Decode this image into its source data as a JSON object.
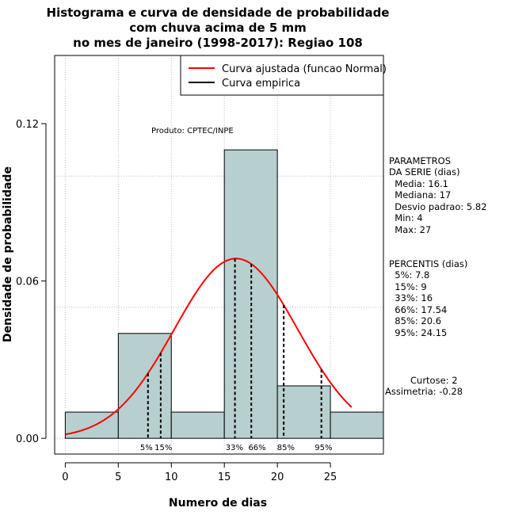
{
  "chart_data": {
    "type": "histogram",
    "title_lines": [
      "Histograma e curva de densidade de probabilidade",
      "com chuva acima de 5 mm",
      "no mes de janeiro (1998-2017): Regiao 108"
    ],
    "xlabel": "Numero de dias",
    "ylabel": "Densidade de probabilidade",
    "xlim": [
      -1,
      30
    ],
    "ylim": [
      -0.006,
      0.146
    ],
    "x_ticks": [
      0,
      5,
      10,
      15,
      20,
      25
    ],
    "y_ticks": [
      0.0,
      0.06,
      0.12
    ],
    "y_tick_labels": [
      "0.00",
      "0.06",
      "0.12"
    ],
    "grid": true,
    "bins": [
      {
        "start": 0,
        "end": 5,
        "density": 0.01
      },
      {
        "start": 5,
        "end": 10,
        "density": 0.04
      },
      {
        "start": 10,
        "end": 15,
        "density": 0.01
      },
      {
        "start": 15,
        "end": 20,
        "density": 0.11
      },
      {
        "start": 20,
        "end": 25,
        "density": 0.02
      },
      {
        "start": 25,
        "end": 30,
        "density": 0.01
      }
    ],
    "normal_curve": {
      "mean": 16.1,
      "sd": 5.82,
      "x_range": [
        0,
        27
      ],
      "color": "#ff0000"
    },
    "bar_color": "#b8cfcf",
    "product_label": "Produto: CPTEC/INPE",
    "legend": {
      "position": "top-right",
      "entries": [
        {
          "label": "Curva ajustada (funcao Normal)",
          "color": "#ff0000"
        },
        {
          "label": "Curva empirica",
          "color": "#000000"
        }
      ]
    },
    "percentiles": [
      {
        "label": "5%",
        "value": 7.8
      },
      {
        "label": "15%",
        "value": 9
      },
      {
        "label": "33%",
        "value": 16
      },
      {
        "label": "66%",
        "value": 17.54
      },
      {
        "label": "85%",
        "value": 20.6
      },
      {
        "label": "95%",
        "value": 24.15
      }
    ]
  },
  "side_panel": {
    "parametros_lines": [
      "PARAMETROS",
      "DA SERIE (dias)",
      "  Media: 16.1",
      "  Mediana: 17",
      "  Desvio padrao: 5.82",
      "  Min: 4",
      "  Max: 27"
    ],
    "percentis_lines": [
      "PERCENTIS (dias)",
      "  5%: 7.8",
      "  15%: 9",
      "  33%: 16",
      "  66%: 17.54",
      "  85%: 20.6",
      "  95%: 24.15"
    ],
    "curtose": "Curtose: 2",
    "assimetria": "Assimetria: -0.28"
  }
}
